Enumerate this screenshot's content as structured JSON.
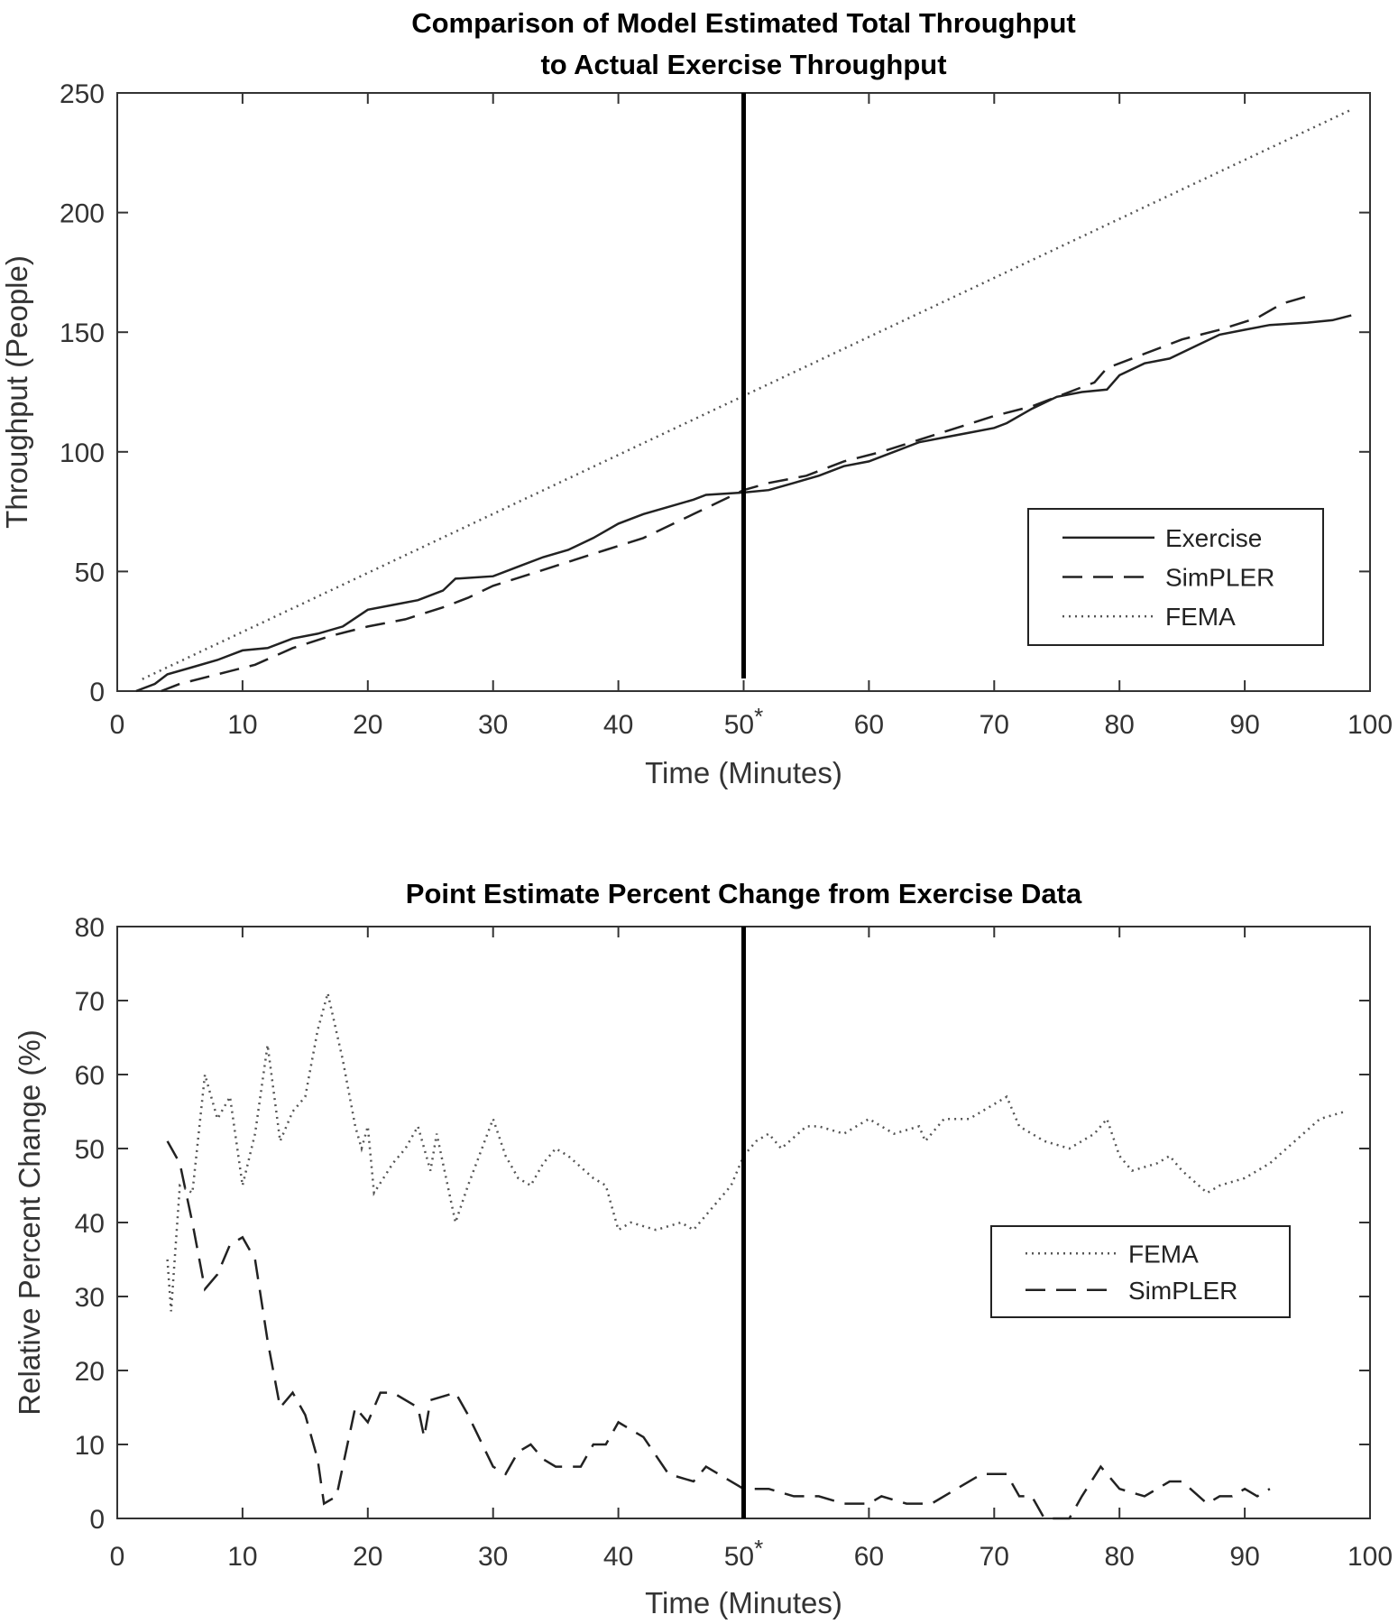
{
  "chart_data": [
    {
      "type": "line",
      "title": [
        "Comparison of Model Estimated Total Throughput",
        "to Actual Exercise Throughput"
      ],
      "xlabel": "Time (Minutes)",
      "ylabel": "Throughput (People)",
      "xlim": [
        0,
        100
      ],
      "ylim": [
        0,
        250
      ],
      "xticks": [
        "0",
        "10",
        "20",
        "30",
        "40",
        "50*",
        "60",
        "70",
        "80",
        "90",
        "100"
      ],
      "yticks": [
        "0",
        "50",
        "100",
        "150",
        "200",
        "250"
      ],
      "vline_x": 50,
      "grid": false,
      "legend_placement": "lower-right",
      "series": [
        {
          "name": "Exercise",
          "style": "solid",
          "x": [
            1.5,
            3,
            4,
            6,
            8,
            10,
            12,
            14,
            16,
            18,
            20,
            22,
            24,
            26,
            27,
            30,
            32,
            34,
            36,
            38,
            40,
            42,
            44,
            46,
            47,
            50,
            52,
            54,
            56,
            58,
            60,
            62,
            64,
            66,
            68,
            70,
            71,
            73,
            75,
            77,
            79,
            80,
            82,
            84,
            86,
            88,
            90,
            92,
            95,
            97,
            98.5
          ],
          "y": [
            0,
            3,
            7,
            10,
            13,
            17,
            18,
            22,
            24,
            27,
            34,
            36,
            38,
            42,
            47,
            48,
            52,
            56,
            59,
            64,
            70,
            74,
            77,
            80,
            82,
            83,
            84,
            87,
            90,
            94,
            96,
            100,
            104,
            106,
            108,
            110,
            112,
            118,
            123,
            125,
            126,
            132,
            137,
            139,
            144,
            149,
            151,
            153,
            154,
            155,
            157
          ]
        },
        {
          "name": "SimPLER",
          "style": "dashed",
          "x": [
            3.5,
            5,
            8,
            11,
            14,
            17,
            20,
            23,
            26,
            28,
            30,
            33,
            36,
            39,
            42,
            44,
            46,
            48,
            50,
            52,
            55,
            58,
            61,
            64,
            67,
            70,
            73,
            76,
            78,
            79,
            82,
            85,
            88,
            91,
            93,
            95
          ],
          "y": [
            0,
            3,
            7,
            11,
            18,
            23,
            27,
            30,
            35,
            39,
            44,
            49,
            54,
            59,
            64,
            69,
            74,
            79,
            84,
            87,
            90,
            96,
            100,
            105,
            110,
            115,
            119,
            125,
            129,
            135,
            141,
            147,
            151,
            156,
            162,
            165
          ]
        },
        {
          "name": "FEMA",
          "style": "dotted",
          "x": [
            2,
            98.5
          ],
          "y": [
            5,
            243
          ]
        }
      ]
    },
    {
      "type": "line",
      "title": [
        "Point Estimate Percent Change from Exercise Data"
      ],
      "xlabel": "Time (Minutes)",
      "ylabel": "Relative Percent Change (%)",
      "xlim": [
        0,
        100
      ],
      "ylim": [
        0,
        80
      ],
      "xticks": [
        "0",
        "10",
        "20",
        "30",
        "40",
        "50*",
        "60",
        "70",
        "80",
        "90",
        "100"
      ],
      "yticks": [
        "0",
        "10",
        "20",
        "30",
        "40",
        "50",
        "60",
        "70",
        "80"
      ],
      "vline_x": 50,
      "grid": false,
      "legend_placement": "right",
      "series": [
        {
          "name": "FEMA",
          "style": "dotted",
          "x": [
            4,
            4.3,
            5,
            6,
            7,
            8,
            9,
            10,
            11,
            12,
            13,
            14,
            15,
            16,
            16.8,
            18,
            19,
            19.5,
            20,
            20.5,
            22,
            23,
            24,
            25,
            25.5,
            27,
            28,
            30,
            31,
            32,
            33,
            34,
            35,
            36,
            38,
            39,
            40,
            41,
            43,
            45,
            46,
            47,
            49,
            50,
            51,
            52,
            53,
            55,
            56,
            58,
            60,
            62,
            64,
            64.5,
            66,
            68,
            71,
            72,
            74,
            76,
            77,
            78,
            79,
            80,
            81,
            83,
            84,
            85,
            87,
            88,
            90,
            92,
            94,
            96,
            98
          ],
          "y": [
            35,
            28,
            45,
            44,
            60,
            54,
            57,
            45,
            52,
            64,
            51,
            55,
            57,
            66,
            71,
            62,
            53,
            50,
            53,
            44,
            48,
            50,
            53,
            47,
            52,
            40,
            45,
            54,
            49,
            46,
            45,
            48,
            50,
            49,
            46,
            45,
            39,
            40,
            39,
            40,
            39,
            41,
            45,
            49,
            51,
            52,
            50,
            53,
            53,
            52,
            54,
            52,
            53,
            51,
            54,
            54,
            57,
            53,
            51,
            50,
            51,
            52,
            54,
            49,
            47,
            48,
            49,
            47,
            44,
            45,
            46,
            48,
            51,
            54,
            55
          ]
        },
        {
          "name": "SimPLER",
          "style": "dashed",
          "x": [
            4,
            5,
            6,
            7,
            8,
            9,
            10,
            11,
            12,
            13,
            14,
            15,
            16,
            16.5,
            17.5,
            18,
            19,
            20,
            21,
            22,
            24,
            24.5,
            25,
            27,
            28,
            30,
            31,
            32,
            33,
            34,
            35,
            37,
            38,
            39,
            40,
            42,
            44,
            46,
            47,
            48,
            50,
            52,
            54,
            56,
            58,
            60,
            61,
            63,
            65,
            67,
            69,
            71,
            72,
            73,
            74,
            75,
            76,
            77,
            78.5,
            80,
            82,
            84,
            85,
            87,
            88,
            89,
            90,
            91,
            92
          ],
          "y": [
            51,
            48,
            40,
            31,
            33,
            37,
            38,
            35,
            24,
            15,
            17,
            14,
            8,
            2,
            3,
            7,
            15,
            13,
            17,
            17,
            15,
            11,
            16,
            17,
            14,
            7,
            6,
            9,
            10,
            8,
            7,
            7,
            10,
            10,
            13,
            11,
            6,
            5,
            7,
            6,
            4,
            4,
            3,
            3,
            2,
            2,
            3,
            2,
            2,
            4,
            6,
            6,
            3,
            3,
            0,
            0,
            0,
            3,
            7,
            4,
            3,
            5,
            5,
            2,
            3,
            3,
            4,
            3,
            4
          ]
        }
      ]
    }
  ]
}
